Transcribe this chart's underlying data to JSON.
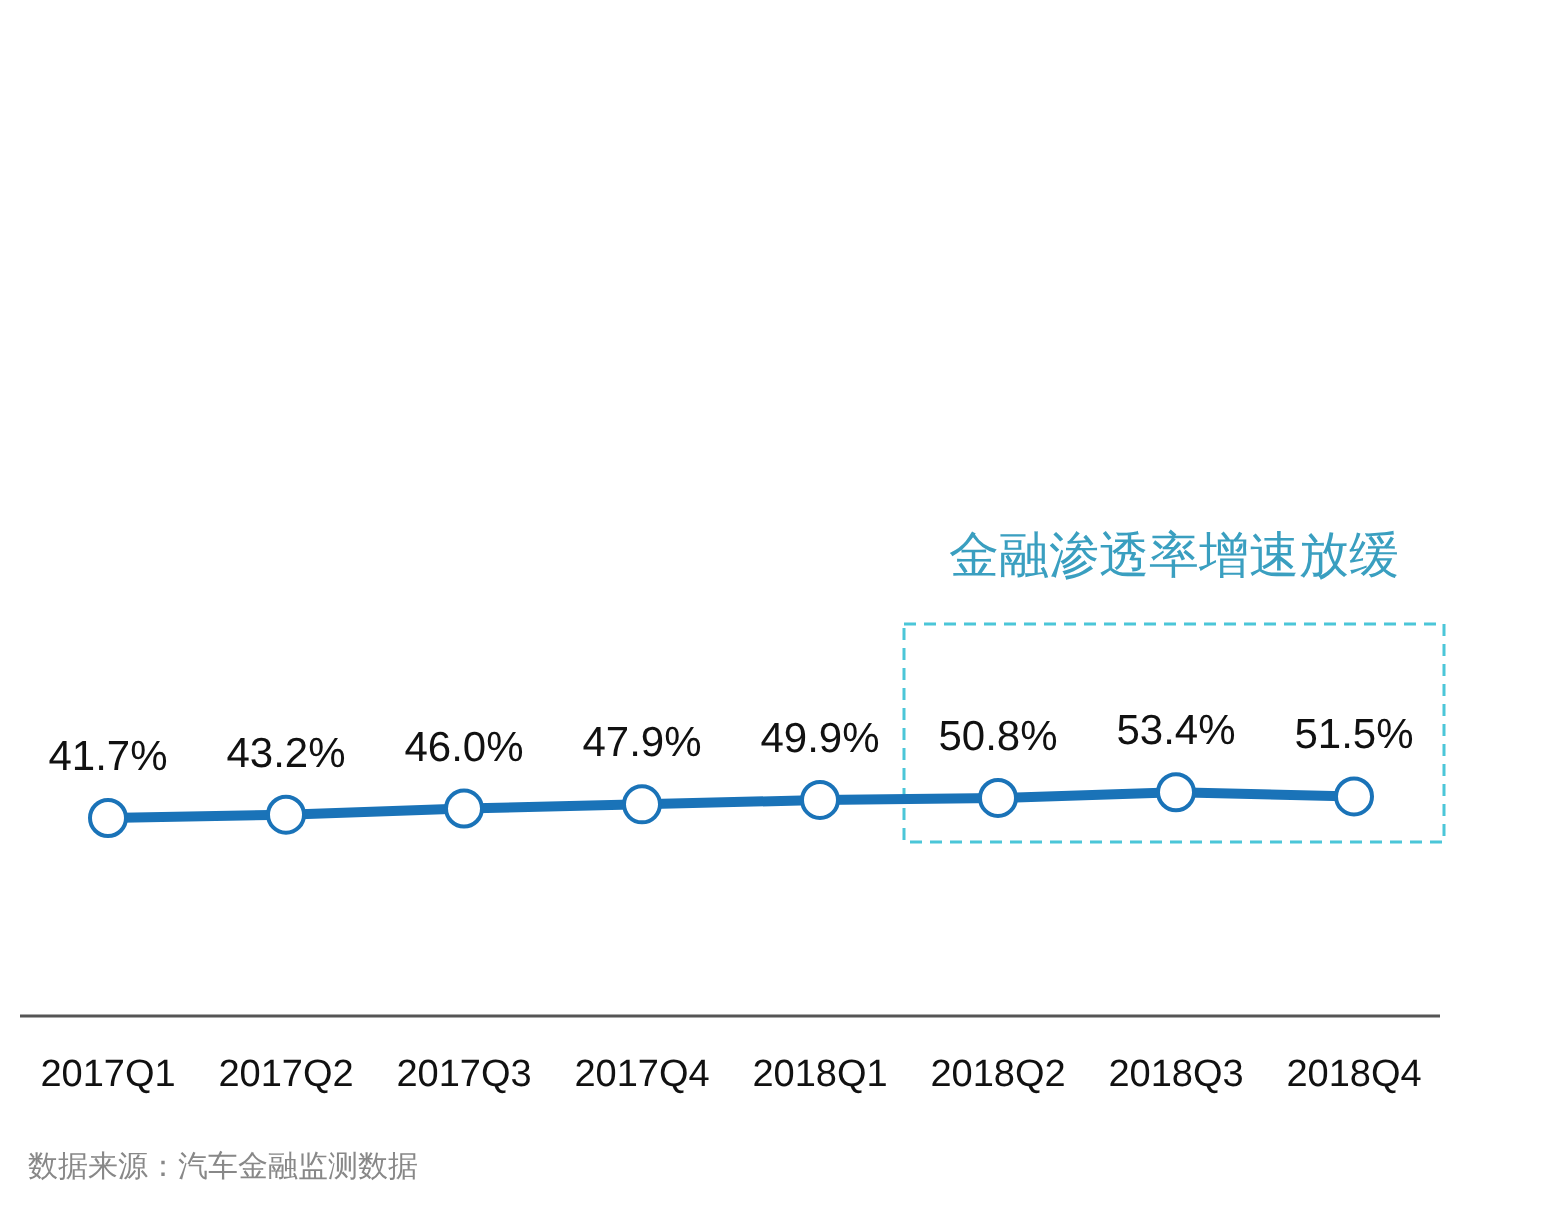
{
  "chart_data": {
    "type": "line",
    "categories": [
      "2017Q1",
      "2017Q2",
      "2017Q3",
      "2017Q4",
      "2018Q1",
      "2018Q2",
      "2018Q3",
      "2018Q4"
    ],
    "series": [
      {
        "color": "#1a73b8",
        "values": [
          41.7,
          43.2,
          46.0,
          47.9,
          49.9,
          50.8,
          53.4,
          51.5
        ],
        "value_labels": [
          "41.7%",
          "43.2%",
          "46.0%",
          "47.9%",
          "49.9%",
          "50.8%",
          "53.4%",
          "51.5%"
        ]
      }
    ],
    "marker": "circle",
    "line_style": "solid",
    "annotations": [
      "金融渗透率增速放缓",
      "数据来源：汽车金融监测数据"
    ]
  }
}
